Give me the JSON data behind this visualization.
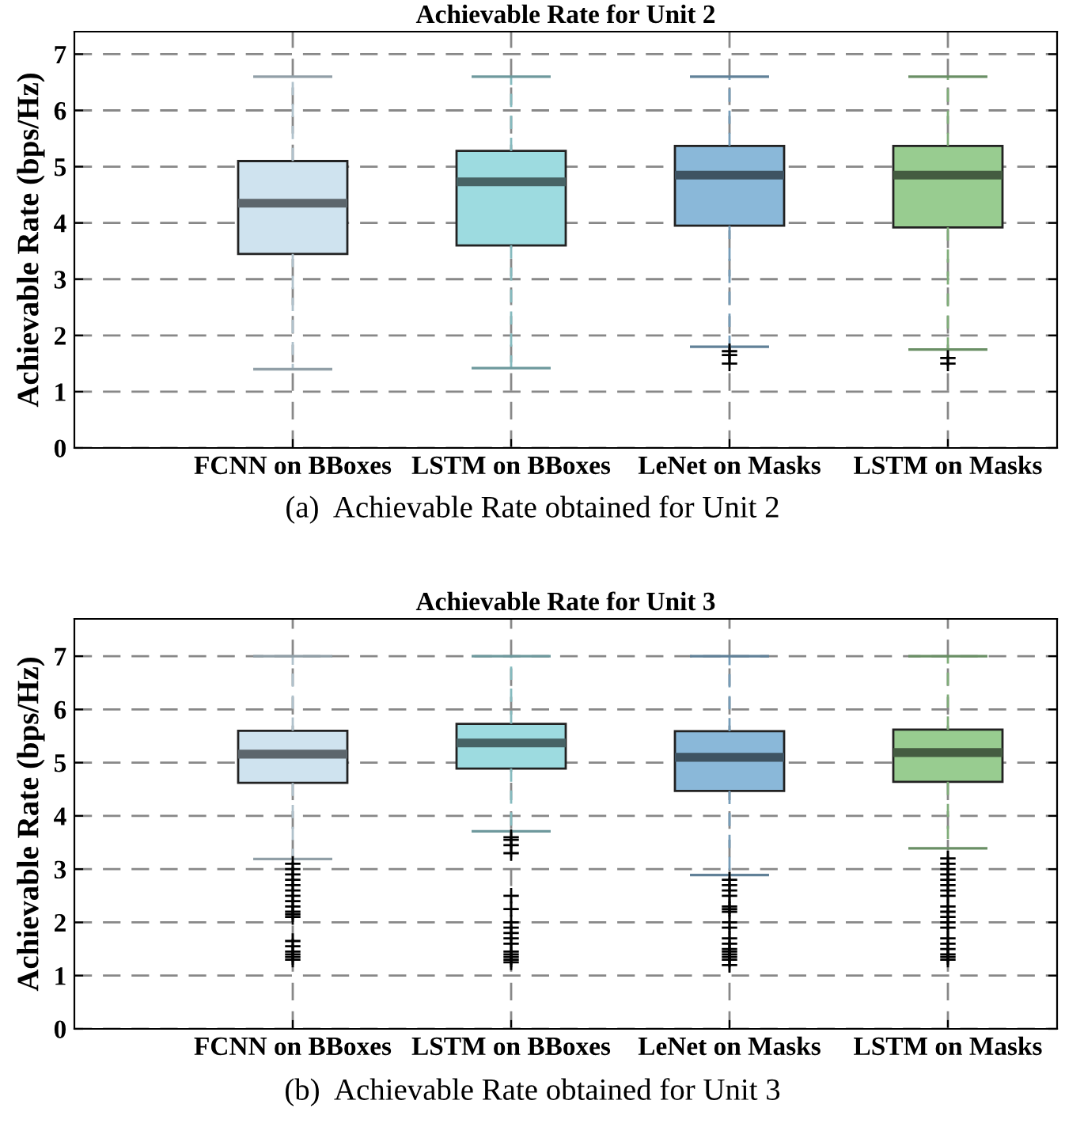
{
  "chart_data": [
    {
      "type": "box",
      "title": "Achievable Rate for Unit 2",
      "ylabel": "Achievable Rate (bps/Hz)",
      "categories": [
        "FCNN on BBoxes",
        "LSTM on BBoxes",
        "LeNet on Masks",
        "LSTM on Masks"
      ],
      "colors": [
        "#cfe3ef",
        "#9ddbe0",
        "#8ab8d9",
        "#98cc90"
      ],
      "boxes": [
        {
          "low": 1.4,
          "q1": 3.45,
          "median": 4.35,
          "q3": 5.1,
          "high": 6.6
        },
        {
          "low": 1.42,
          "q1": 3.6,
          "median": 4.73,
          "q3": 5.28,
          "high": 6.6
        },
        {
          "low": 1.8,
          "q1": 3.95,
          "median": 4.85,
          "q3": 5.37,
          "high": 6.6,
          "outliers": [
            1.72,
            1.65,
            1.5
          ]
        },
        {
          "low": 1.75,
          "q1": 3.92,
          "median": 4.85,
          "q3": 5.37,
          "high": 6.6,
          "outliers": [
            1.6,
            1.5
          ]
        }
      ],
      "ylim": [
        0,
        7.4
      ],
      "yticks": [
        0,
        1,
        2,
        3,
        4,
        5,
        6,
        7
      ],
      "grid": true,
      "marker": "cross",
      "annotations": [
        "(a)  Achievable Rate obtained for Unit 2"
      ]
    },
    {
      "type": "box",
      "title": "Achievable Rate for Unit 3",
      "ylabel": "Achievable Rate (bps/Hz)",
      "categories": [
        "FCNN on BBoxes",
        "LSTM on BBoxes",
        "LeNet on Masks",
        "LSTM on Masks"
      ],
      "colors": [
        "#cfe3ef",
        "#9ddbe0",
        "#8ab8d9",
        "#98cc90"
      ],
      "boxes": [
        {
          "low": 3.19,
          "q1": 4.62,
          "median": 5.16,
          "q3": 5.6,
          "high": 7.0,
          "outliers": [
            3.1,
            3.0,
            2.9,
            2.8,
            2.7,
            2.6,
            2.5,
            2.4,
            2.3,
            2.2,
            2.15,
            2.1,
            1.65,
            1.55,
            1.45,
            1.4,
            1.35,
            1.3
          ]
        },
        {
          "low": 3.71,
          "q1": 4.89,
          "median": 5.37,
          "q3": 5.73,
          "high": 7.0,
          "outliers": [
            3.6,
            3.55,
            3.45,
            3.3,
            2.5,
            2.25,
            2.0,
            1.9,
            1.8,
            1.7,
            1.6,
            1.45,
            1.4,
            1.35,
            1.3,
            1.25
          ]
        },
        {
          "low": 2.89,
          "q1": 4.47,
          "median": 5.1,
          "q3": 5.59,
          "high": 7.0,
          "outliers": [
            2.8,
            2.7,
            2.6,
            2.5,
            2.3,
            2.25,
            2.2,
            2.0,
            1.9,
            1.7,
            1.6,
            1.5,
            1.45,
            1.4,
            1.35,
            1.3,
            1.2
          ]
        },
        {
          "low": 3.39,
          "q1": 4.64,
          "median": 5.19,
          "q3": 5.62,
          "high": 7.0,
          "outliers": [
            3.2,
            3.1,
            3.0,
            2.9,
            2.8,
            2.7,
            2.6,
            2.5,
            2.3,
            2.2,
            2.1,
            2.0,
            1.9,
            1.7,
            1.6,
            1.5,
            1.4,
            1.35,
            1.3
          ]
        }
      ],
      "ylim": [
        0,
        7.7
      ],
      "yticks": [
        0,
        1,
        2,
        3,
        4,
        5,
        6,
        7
      ],
      "grid": true,
      "marker": "cross",
      "annotations": [
        "(b)  Achievable Rate obtained for Unit 3"
      ]
    }
  ]
}
